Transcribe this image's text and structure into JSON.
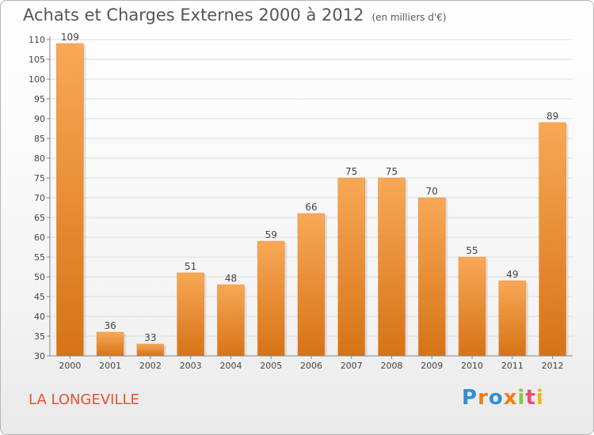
{
  "header": {
    "title": "Achats et Charges Externes 2000 à 2012",
    "subtitle": "(en milliers d'€)"
  },
  "footer": {
    "location": "LA LONGEVILLE",
    "logo_letters": [
      "P",
      "r",
      "o",
      "x",
      "i",
      "t",
      "i"
    ],
    "logo_text": "Proxiti"
  },
  "colors": {
    "bar_light": "#f7a452",
    "bar_dark": "#d97418",
    "accent_text": "#e2562e",
    "grid": "#dcdcdc"
  },
  "chart_data": {
    "type": "bar",
    "title": "Achats et Charges Externes 2000 à 2012",
    "subtitle": "(en milliers d'€)",
    "categories": [
      "2000",
      "2001",
      "2002",
      "2003",
      "2004",
      "2005",
      "2006",
      "2007",
      "2008",
      "2009",
      "2010",
      "2011",
      "2012"
    ],
    "values": [
      109,
      36,
      33,
      51,
      48,
      59,
      66,
      75,
      75,
      70,
      55,
      49,
      89
    ],
    "ylim": [
      30,
      110
    ],
    "yticks": [
      30,
      35,
      40,
      45,
      50,
      55,
      60,
      65,
      70,
      75,
      80,
      85,
      90,
      95,
      100,
      105,
      110
    ],
    "grid": true,
    "data_labels": true
  }
}
